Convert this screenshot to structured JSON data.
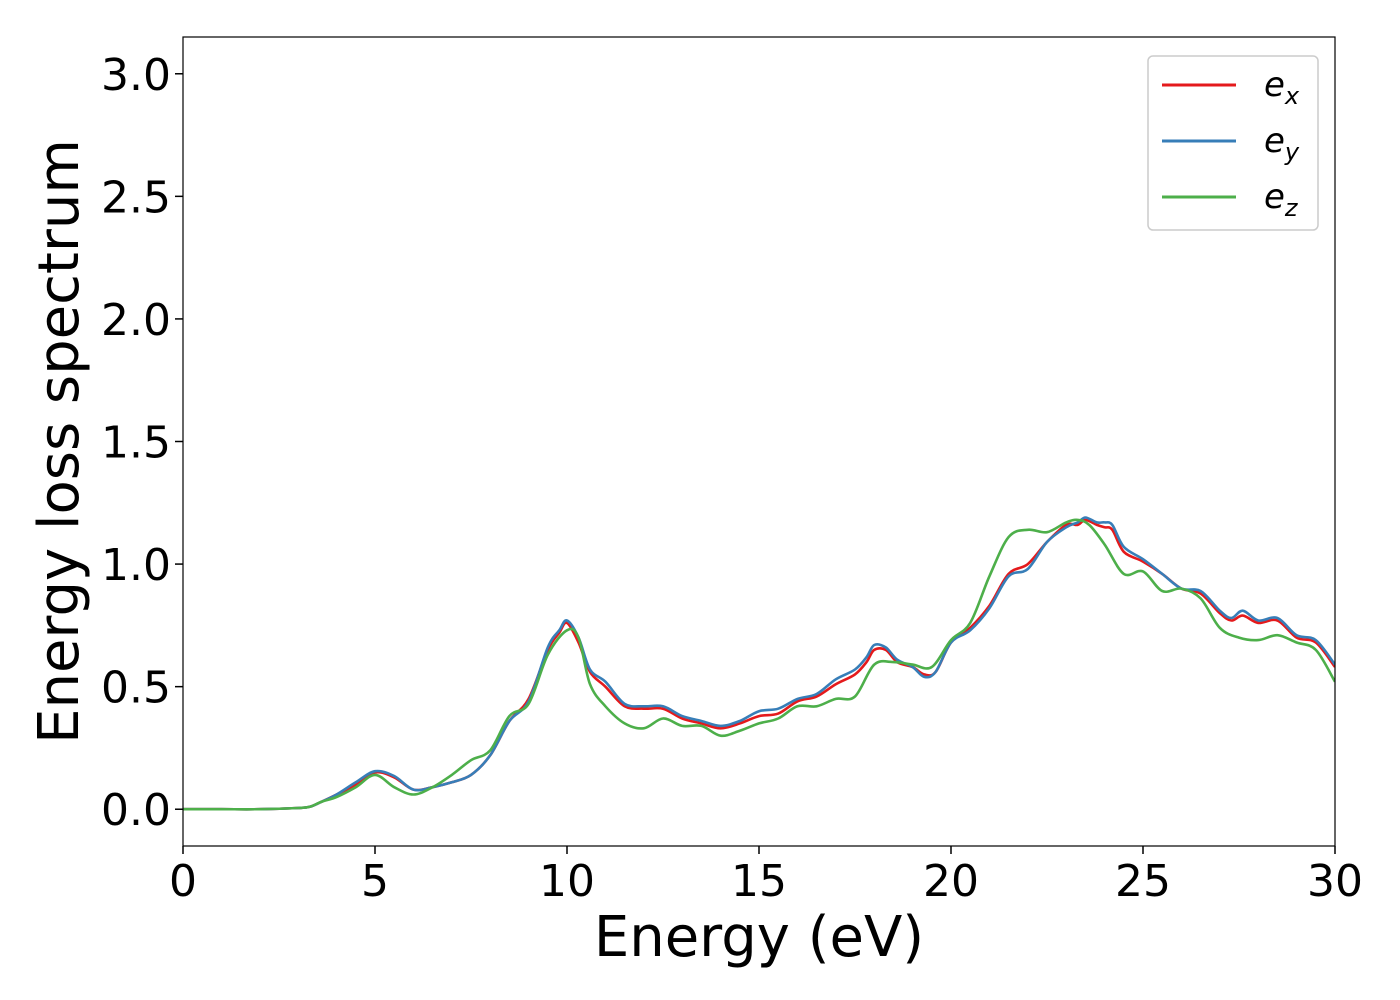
{
  "chart_data": {
    "type": "line",
    "xlabel": "Energy (eV)",
    "ylabel": "Energy loss spectrum",
    "xlim": [
      0,
      30
    ],
    "ylim": [
      -0.15,
      3.15
    ],
    "xticks": [
      0,
      5,
      10,
      15,
      20,
      25,
      30
    ],
    "xtick_labels": [
      "0",
      "5",
      "10",
      "15",
      "20",
      "25",
      "30"
    ],
    "yticks": [
      0.0,
      0.5,
      1.0,
      1.5,
      2.0,
      2.5,
      3.0
    ],
    "ytick_labels": [
      "0.0",
      "0.5",
      "1.0",
      "1.5",
      "2.0",
      "2.5",
      "3.0"
    ],
    "grid": false,
    "legend_position": "top-right",
    "series": [
      {
        "name": "e_x",
        "label_main": "e",
        "label_sub": "x",
        "color": "#e41a1c",
        "x": [
          0,
          1,
          2,
          3,
          3.3,
          3.6,
          4,
          4.5,
          5,
          5.5,
          6,
          6.5,
          7,
          7.5,
          8,
          8.5,
          9,
          9.5,
          9.8,
          10,
          10.3,
          10.6,
          11,
          11.5,
          12,
          12.5,
          13,
          13.5,
          14,
          14.5,
          15,
          15.5,
          16,
          16.5,
          17,
          17.5,
          17.8,
          18,
          18.3,
          18.6,
          19,
          19.3,
          19.6,
          20,
          20.5,
          21,
          21.5,
          22,
          22.5,
          23,
          23.3,
          23.5,
          23.8,
          24,
          24.2,
          24.5,
          25,
          25.5,
          26,
          26.5,
          27,
          27.3,
          27.6,
          28,
          28.5,
          29,
          29.5,
          30
        ],
        "y": [
          0,
          0,
          0,
          0.005,
          0.01,
          0.03,
          0.06,
          0.1,
          0.15,
          0.13,
          0.08,
          0.09,
          0.11,
          0.14,
          0.22,
          0.36,
          0.45,
          0.65,
          0.72,
          0.76,
          0.68,
          0.56,
          0.5,
          0.42,
          0.41,
          0.41,
          0.37,
          0.35,
          0.33,
          0.35,
          0.38,
          0.39,
          0.44,
          0.46,
          0.51,
          0.55,
          0.6,
          0.65,
          0.65,
          0.6,
          0.58,
          0.55,
          0.56,
          0.68,
          0.74,
          0.83,
          0.96,
          1.0,
          1.09,
          1.16,
          1.16,
          1.18,
          1.16,
          1.15,
          1.14,
          1.05,
          1.01,
          0.96,
          0.9,
          0.88,
          0.8,
          0.77,
          0.79,
          0.76,
          0.77,
          0.7,
          0.68,
          0.58
        ]
      },
      {
        "name": "e_y",
        "label_main": "e",
        "label_sub": "y",
        "color": "#377eb8",
        "x": [
          0,
          1,
          2,
          3,
          3.3,
          3.6,
          4,
          4.5,
          5,
          5.5,
          6,
          6.5,
          7,
          7.5,
          8,
          8.5,
          9,
          9.5,
          9.8,
          10,
          10.3,
          10.6,
          11,
          11.5,
          12,
          12.5,
          13,
          13.5,
          14,
          14.5,
          15,
          15.5,
          16,
          16.5,
          17,
          17.5,
          17.8,
          18,
          18.3,
          18.6,
          19,
          19.3,
          19.6,
          20,
          20.5,
          21,
          21.5,
          22,
          22.5,
          23,
          23.3,
          23.5,
          23.8,
          24,
          24.2,
          24.5,
          25,
          25.5,
          26,
          26.5,
          27,
          27.3,
          27.6,
          28,
          28.5,
          29,
          29.5,
          30
        ],
        "y": [
          0,
          0,
          0,
          0.005,
          0.01,
          0.03,
          0.06,
          0.11,
          0.155,
          0.135,
          0.08,
          0.09,
          0.11,
          0.14,
          0.22,
          0.36,
          0.44,
          0.66,
          0.73,
          0.77,
          0.7,
          0.57,
          0.52,
          0.43,
          0.42,
          0.42,
          0.38,
          0.36,
          0.34,
          0.36,
          0.4,
          0.41,
          0.45,
          0.47,
          0.53,
          0.57,
          0.62,
          0.67,
          0.66,
          0.61,
          0.58,
          0.54,
          0.56,
          0.68,
          0.73,
          0.82,
          0.95,
          0.98,
          1.09,
          1.15,
          1.17,
          1.19,
          1.17,
          1.17,
          1.16,
          1.07,
          1.02,
          0.96,
          0.9,
          0.89,
          0.81,
          0.78,
          0.81,
          0.77,
          0.78,
          0.71,
          0.69,
          0.59
        ]
      },
      {
        "name": "e_z",
        "label_main": "e",
        "label_sub": "z",
        "color": "#4daf4a",
        "x": [
          0,
          1,
          2,
          3,
          3.3,
          3.6,
          4,
          4.5,
          5,
          5.5,
          6,
          6.5,
          7,
          7.5,
          8,
          8.5,
          9,
          9.5,
          10,
          10.3,
          10.6,
          11,
          11.5,
          12,
          12.5,
          13,
          13.5,
          14,
          14.5,
          15,
          15.5,
          16,
          16.5,
          17,
          17.5,
          18,
          18.5,
          19,
          19.5,
          20,
          20.5,
          21,
          21.5,
          22,
          22.5,
          23,
          23.3,
          23.6,
          24,
          24.5,
          25,
          25.5,
          26,
          26.5,
          27,
          27.5,
          28,
          28.5,
          29,
          29.5,
          30
        ],
        "y": [
          0,
          0,
          0,
          0.005,
          0.01,
          0.03,
          0.05,
          0.09,
          0.14,
          0.09,
          0.06,
          0.09,
          0.14,
          0.2,
          0.24,
          0.38,
          0.43,
          0.63,
          0.73,
          0.7,
          0.51,
          0.42,
          0.35,
          0.33,
          0.37,
          0.34,
          0.34,
          0.3,
          0.32,
          0.35,
          0.37,
          0.42,
          0.42,
          0.45,
          0.46,
          0.59,
          0.6,
          0.59,
          0.58,
          0.69,
          0.76,
          0.95,
          1.11,
          1.14,
          1.13,
          1.17,
          1.18,
          1.16,
          1.08,
          0.96,
          0.97,
          0.89,
          0.9,
          0.86,
          0.74,
          0.7,
          0.69,
          0.71,
          0.68,
          0.65,
          0.52
        ]
      }
    ]
  }
}
